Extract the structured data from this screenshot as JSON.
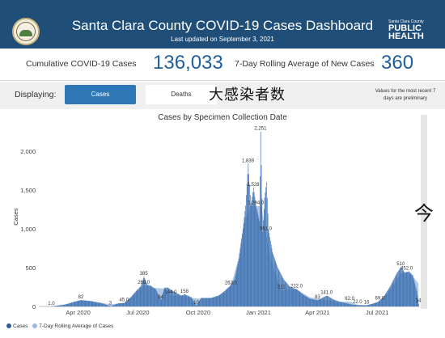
{
  "header": {
    "title": "Santa Clara County COVID-19 Cases Dashboard",
    "subtitle": "Last updated on September 3, 2021",
    "logo_small": "Santa Clara County",
    "logo_big_1": "PUBLIC",
    "logo_big_2": "HEALTH"
  },
  "kpis": {
    "cumulative_label": "Cumulative COVID-19 Cases",
    "cumulative_value": "136,033",
    "rolling_label": "7-Day Rolling Average of New Cases",
    "rolling_value": "360"
  },
  "display": {
    "label": "Displaying:",
    "cases_label": "Cases",
    "deaths_label": "Deaths",
    "handwritten_note": "大感染者数",
    "prelim_note": "Values for the most recent 7 days are preliminary"
  },
  "annotations": {
    "right_mark": "今"
  },
  "colors": {
    "header_bg": "#1f4e79",
    "accent": "#2f78b8",
    "bar": "#3a6fb0",
    "area": "#9fb9dc"
  },
  "legend": {
    "cases_label": "Cases",
    "rolling_label": "7-Day Rolling Average of Cases"
  },
  "chart_data": {
    "type": "bar",
    "title": "Cases by Specimen Collection Date",
    "ylabel": "Cases",
    "xlabel": "",
    "ylim": [
      0,
      2300
    ],
    "yticks": [
      0,
      500,
      1000,
      1500,
      2000
    ],
    "ytick_labels": [
      "0",
      "500",
      "1,000",
      "1,500",
      "2,000"
    ],
    "xtick_labels": [
      "Apr 2020",
      "Jul 2020",
      "Oct 2020",
      "Jan 2021",
      "Apr 2021",
      "Jul 2021"
    ],
    "x_range": [
      "2020-02-01",
      "2021-09-03"
    ],
    "xticks": [
      "2020-04-01",
      "2020-07-01",
      "2020-10-01",
      "2021-01-01",
      "2021-04-01",
      "2021-07-01"
    ],
    "series": [
      {
        "name": "Cases",
        "points": [
          [
            "2020-02-20",
            1
          ],
          [
            "2020-03-10",
            20
          ],
          [
            "2020-03-25",
            60
          ],
          [
            "2020-04-05",
            82
          ],
          [
            "2020-04-20",
            70
          ],
          [
            "2020-05-05",
            45
          ],
          [
            "2020-05-20",
            3
          ],
          [
            "2020-06-01",
            40
          ],
          [
            "2020-06-10",
            45
          ],
          [
            "2020-06-20",
            120
          ],
          [
            "2020-06-28",
            200
          ],
          [
            "2020-07-05",
            260
          ],
          [
            "2020-07-10",
            385
          ],
          [
            "2020-07-15",
            280
          ],
          [
            "2020-07-20",
            269
          ],
          [
            "2020-07-28",
            220
          ],
          [
            "2020-08-05",
            84
          ],
          [
            "2020-08-10",
            240
          ],
          [
            "2020-08-15",
            244
          ],
          [
            "2020-08-25",
            190
          ],
          [
            "2020-09-05",
            140
          ],
          [
            "2020-09-10",
            158
          ],
          [
            "2020-09-20",
            120
          ],
          [
            "2020-09-28",
            10
          ],
          [
            "2020-10-05",
            110
          ],
          [
            "2020-10-20",
            110
          ],
          [
            "2020-11-01",
            140
          ],
          [
            "2020-11-10",
            200
          ],
          [
            "2020-11-18",
            263
          ],
          [
            "2020-11-25",
            350
          ],
          [
            "2020-12-02",
            620
          ],
          [
            "2020-12-08",
            1000
          ],
          [
            "2020-12-12",
            1300
          ],
          [
            "2020-12-16",
            1839
          ],
          [
            "2020-12-20",
            1300
          ],
          [
            "2020-12-24",
            1528
          ],
          [
            "2020-12-28",
            1294
          ],
          [
            "2021-01-02",
            1100
          ],
          [
            "2021-01-04",
            2251
          ],
          [
            "2021-01-07",
            960
          ],
          [
            "2021-01-10",
            1400
          ],
          [
            "2021-01-13",
            1600
          ],
          [
            "2021-01-16",
            990
          ],
          [
            "2021-01-22",
            700
          ],
          [
            "2021-01-30",
            500
          ],
          [
            "2021-02-08",
            350
          ],
          [
            "2021-02-18",
            250
          ],
          [
            "2021-02-28",
            222
          ],
          [
            "2021-03-10",
            150
          ],
          [
            "2021-03-20",
            100
          ],
          [
            "2021-04-01",
            80
          ],
          [
            "2021-04-10",
            120
          ],
          [
            "2021-04-15",
            141
          ],
          [
            "2021-04-25",
            90
          ],
          [
            "2021-05-05",
            60
          ],
          [
            "2021-05-15",
            40
          ],
          [
            "2021-05-25",
            22
          ],
          [
            "2021-06-05",
            15
          ],
          [
            "2021-06-15",
            16
          ],
          [
            "2021-06-25",
            40
          ],
          [
            "2021-07-02",
            60
          ],
          [
            "2021-07-10",
            120
          ],
          [
            "2021-07-20",
            250
          ],
          [
            "2021-07-30",
            420
          ],
          [
            "2021-08-06",
            510
          ],
          [
            "2021-08-12",
            430
          ],
          [
            "2021-08-18",
            452
          ],
          [
            "2021-08-24",
            400
          ],
          [
            "2021-08-30",
            200
          ],
          [
            "2021-09-02",
            34
          ]
        ]
      },
      {
        "name": "7-Day Rolling Average of Cases",
        "points": [
          [
            "2020-02-20",
            1.0
          ],
          [
            "2020-03-20",
            40
          ],
          [
            "2020-04-05",
            82
          ],
          [
            "2020-04-25",
            60
          ],
          [
            "2020-05-20",
            30
          ],
          [
            "2020-06-10",
            45.0
          ],
          [
            "2020-06-25",
            150
          ],
          [
            "2020-07-10",
            269.0
          ],
          [
            "2020-07-25",
            240
          ],
          [
            "2020-08-10",
            230
          ],
          [
            "2020-08-20",
            144.0
          ],
          [
            "2020-09-05",
            140
          ],
          [
            "2020-09-20",
            110
          ],
          [
            "2020-10-05",
            100
          ],
          [
            "2020-10-25",
            110
          ],
          [
            "2020-11-10",
            180
          ],
          [
            "2020-11-20",
            263.0
          ],
          [
            "2020-12-01",
            600
          ],
          [
            "2020-12-10",
            1100
          ],
          [
            "2020-12-20",
            1294
          ],
          [
            "2020-12-28",
            1294.0
          ],
          [
            "2021-01-05",
            1294
          ],
          [
            "2021-01-12",
            961.0
          ],
          [
            "2021-01-20",
            600
          ],
          [
            "2021-01-28",
            400
          ],
          [
            "2021-02-05",
            211
          ],
          [
            "2021-02-28",
            222.0
          ],
          [
            "2021-03-20",
            120
          ],
          [
            "2021-04-15",
            83
          ],
          [
            "2021-05-01",
            60
          ],
          [
            "2021-05-20",
            62.0
          ],
          [
            "2021-06-01",
            22.0
          ],
          [
            "2021-06-15",
            16
          ],
          [
            "2021-06-28",
            40
          ],
          [
            "2021-07-05",
            69.0
          ],
          [
            "2021-07-20",
            200
          ],
          [
            "2021-08-05",
            420
          ],
          [
            "2021-08-15",
            452.0
          ],
          [
            "2021-08-25",
            380
          ],
          [
            "2021-09-02",
            300
          ]
        ]
      }
    ],
    "data_labels": [
      {
        "x": "2020-02-20",
        "y": 1.0,
        "text": "1.0"
      },
      {
        "x": "2020-04-05",
        "y": 82,
        "text": "82"
      },
      {
        "x": "2020-05-20",
        "y": 3,
        "text": "3"
      },
      {
        "x": "2020-06-10",
        "y": 45.0,
        "text": "45.0"
      },
      {
        "x": "2020-07-10",
        "y": 385,
        "text": "385"
      },
      {
        "x": "2020-07-10",
        "y": 269.0,
        "text": "269.0"
      },
      {
        "x": "2020-08-05",
        "y": 84,
        "text": "84"
      },
      {
        "x": "2020-08-20",
        "y": 144.0,
        "text": "144.0"
      },
      {
        "x": "2020-09-10",
        "y": 158,
        "text": "158"
      },
      {
        "x": "2020-09-28",
        "y": 10,
        "text": "10"
      },
      {
        "x": "2020-11-20",
        "y": 263.0,
        "text": "263.0"
      },
      {
        "x": "2020-12-16",
        "y": 1839,
        "text": "1,839"
      },
      {
        "x": "2020-12-24",
        "y": 1528,
        "text": "1,528"
      },
      {
        "x": "2020-12-28",
        "y": 1294.0,
        "text": "1,294.0"
      },
      {
        "x": "2021-01-04",
        "y": 2251,
        "text": "2,251"
      },
      {
        "x": "2021-01-12",
        "y": 961.0,
        "text": "961.0"
      },
      {
        "x": "2021-02-05",
        "y": 211,
        "text": "211"
      },
      {
        "x": "2021-02-28",
        "y": 222.0,
        "text": "222.0"
      },
      {
        "x": "2021-04-01",
        "y": 83,
        "text": "83"
      },
      {
        "x": "2021-04-15",
        "y": 141.0,
        "text": "141.0"
      },
      {
        "x": "2021-05-20",
        "y": 62.0,
        "text": "62.0"
      },
      {
        "x": "2021-06-01",
        "y": 22.0,
        "text": "22.0"
      },
      {
        "x": "2021-06-15",
        "y": 16,
        "text": "16"
      },
      {
        "x": "2021-07-05",
        "y": 69.0,
        "text": "69.0"
      },
      {
        "x": "2021-08-06",
        "y": 510,
        "text": "510"
      },
      {
        "x": "2021-08-15",
        "y": 452.0,
        "text": "452.0"
      },
      {
        "x": "2021-09-02",
        "y": 34,
        "text": "34"
      }
    ],
    "grid": false,
    "legend_position": "bottom-left"
  }
}
